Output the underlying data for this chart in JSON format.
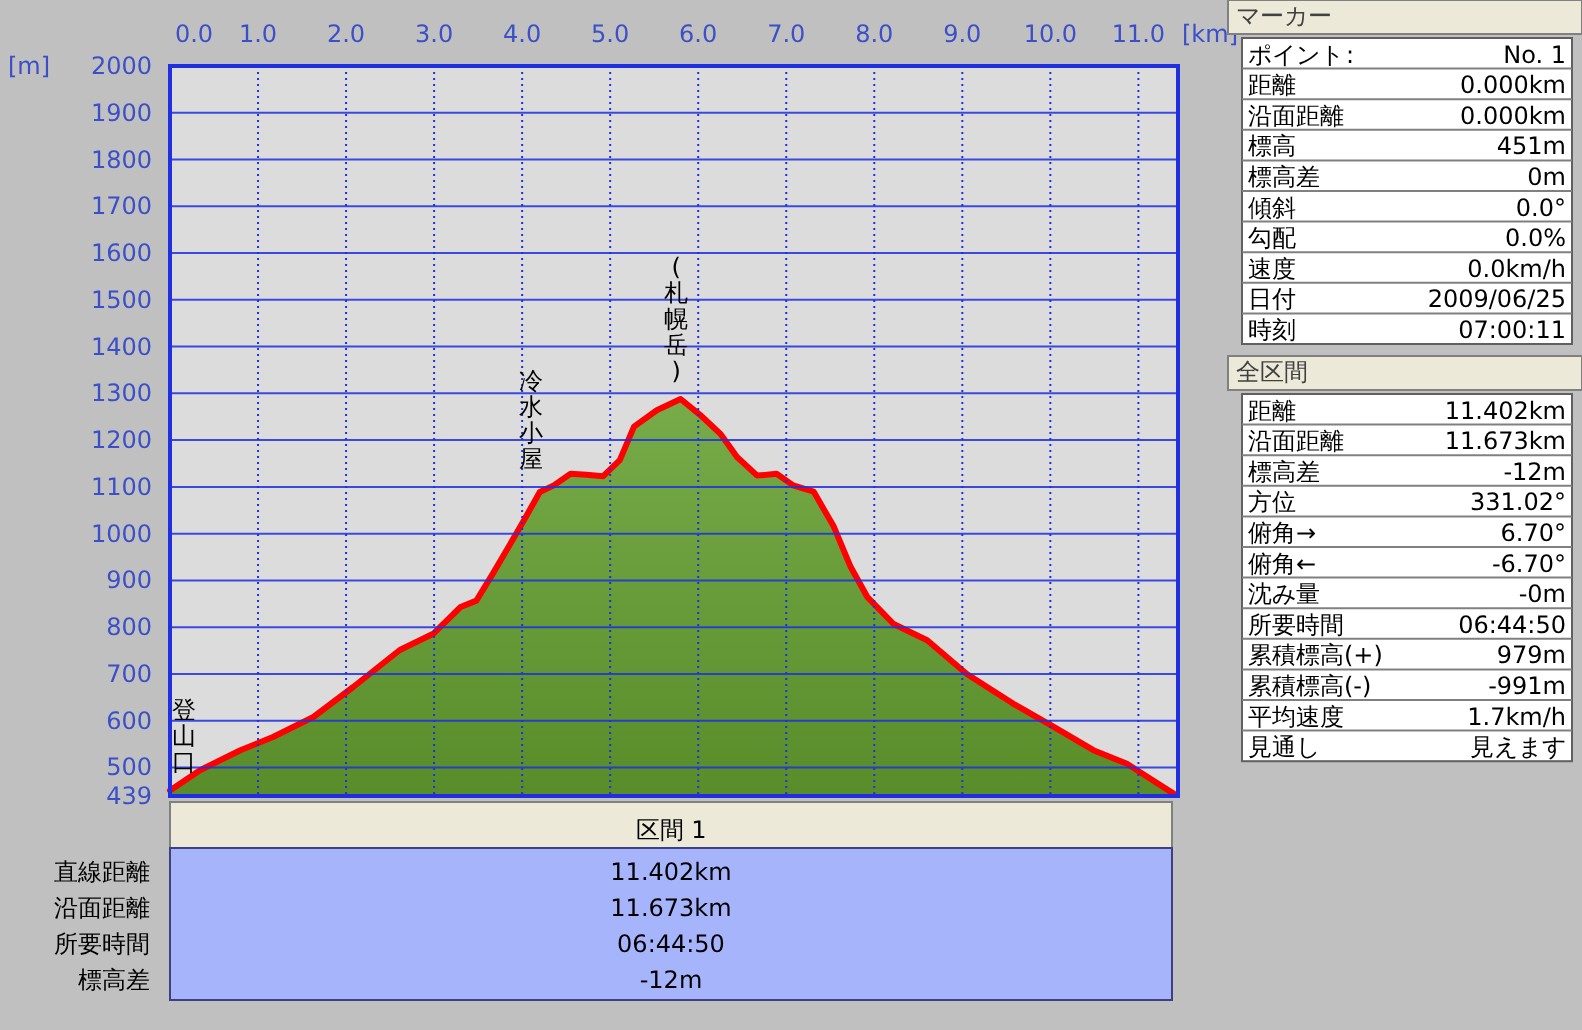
{
  "chart_data": [
    {
      "type": "area",
      "xlabel": "[km]",
      "ylabel": "[m]",
      "xlim": [
        0,
        11.45
      ],
      "ylim": [
        439,
        2000
      ],
      "xticks": [
        {
          "value": 0,
          "label": "0.0"
        },
        {
          "value": 1,
          "label": "1.0"
        },
        {
          "value": 2,
          "label": "2.0"
        },
        {
          "value": 3,
          "label": "3.0"
        },
        {
          "value": 4,
          "label": "4.0"
        },
        {
          "value": 5,
          "label": "5.0"
        },
        {
          "value": 6,
          "label": "6.0"
        },
        {
          "value": 7,
          "label": "7.0"
        },
        {
          "value": 8,
          "label": "8.0"
        },
        {
          "value": 9,
          "label": "9.0"
        },
        {
          "value": 10,
          "label": "10.0"
        },
        {
          "value": 11,
          "label": "11.0"
        }
      ],
      "yticks": [
        439,
        500,
        600,
        700,
        800,
        900,
        1000,
        1100,
        1200,
        1300,
        1400,
        1500,
        1600,
        1700,
        1800,
        1900,
        2000
      ],
      "grid": true,
      "series": [
        {
          "color": "#ff0000",
          "x": [
            0,
            0.34,
            0.8,
            1.17,
            1.63,
            2.08,
            2.61,
            2.99,
            3.3,
            3.48,
            3.67,
            3.98,
            4.2,
            4.36,
            4.55,
            4.73,
            4.92,
            5.11,
            5.27,
            5.53,
            5.8,
            6.02,
            6.25,
            6.44,
            6.67,
            6.89,
            7.08,
            7.31,
            7.54,
            7.73,
            7.92,
            8.22,
            8.6,
            9.05,
            9.58,
            10.04,
            10.49,
            10.87,
            11.1,
            11.4
          ],
          "values": [
            451,
            494,
            537,
            565,
            608,
            672,
            751,
            786,
            843,
            857,
            915,
            1015,
            1089,
            1103,
            1128,
            1126,
            1123,
            1157,
            1229,
            1264,
            1288,
            1254,
            1214,
            1164,
            1124,
            1128,
            1103,
            1090,
            1015,
            929,
            865,
            807,
            772,
            700,
            636,
            587,
            537,
            508,
            480,
            444
          ]
        }
      ],
      "annotations": [
        {
          "text": "登山口",
          "x": 0,
          "y": 451
        },
        {
          "text": "冷水小屋",
          "x": 4.1,
          "y": 1100
        },
        {
          "text": "(札幌岳)",
          "x": 5.75,
          "y": 1288
        }
      ]
    },
    {
      "type": "other",
      "title": "区間 1",
      "categories": [
        "直線距離",
        "沿面距離",
        "所要時間",
        "標高差"
      ],
      "value_labels": [
        "11.402km",
        "11.673km",
        "06:44:50",
        "-12m"
      ]
    },
    {
      "type": "other",
      "title": "マーカー",
      "annotations": [
        ":"
      ],
      "categories": [
        "ポイント",
        "距離",
        "沿面距離",
        "標高",
        "標高差",
        "傾斜",
        "勾配",
        "速度",
        "日付",
        "時刻"
      ],
      "value_labels": [
        "No. 1",
        "0.000km",
        "0.000km",
        "451m",
        "0m",
        "0.0°",
        "0.0%",
        "0.0km/h",
        "2009/06/25",
        "07:00:11"
      ]
    },
    {
      "type": "other",
      "title": "全区間",
      "categories": [
        "距離",
        "沿面距離",
        "標高差",
        "方位",
        "俯角→",
        "俯角←",
        "沈み量",
        "所要時間",
        "累積標高(+)",
        "累積標高(-)",
        "平均速度",
        "見通し"
      ],
      "value_labels": [
        "11.402km",
        "11.673km",
        "-12m",
        "331.02°",
        "6.70°",
        "-6.70°",
        "-0m",
        "06:44:50",
        "979m",
        "-991m",
        "1.7km/h",
        "見えます"
      ]
    }
  ]
}
